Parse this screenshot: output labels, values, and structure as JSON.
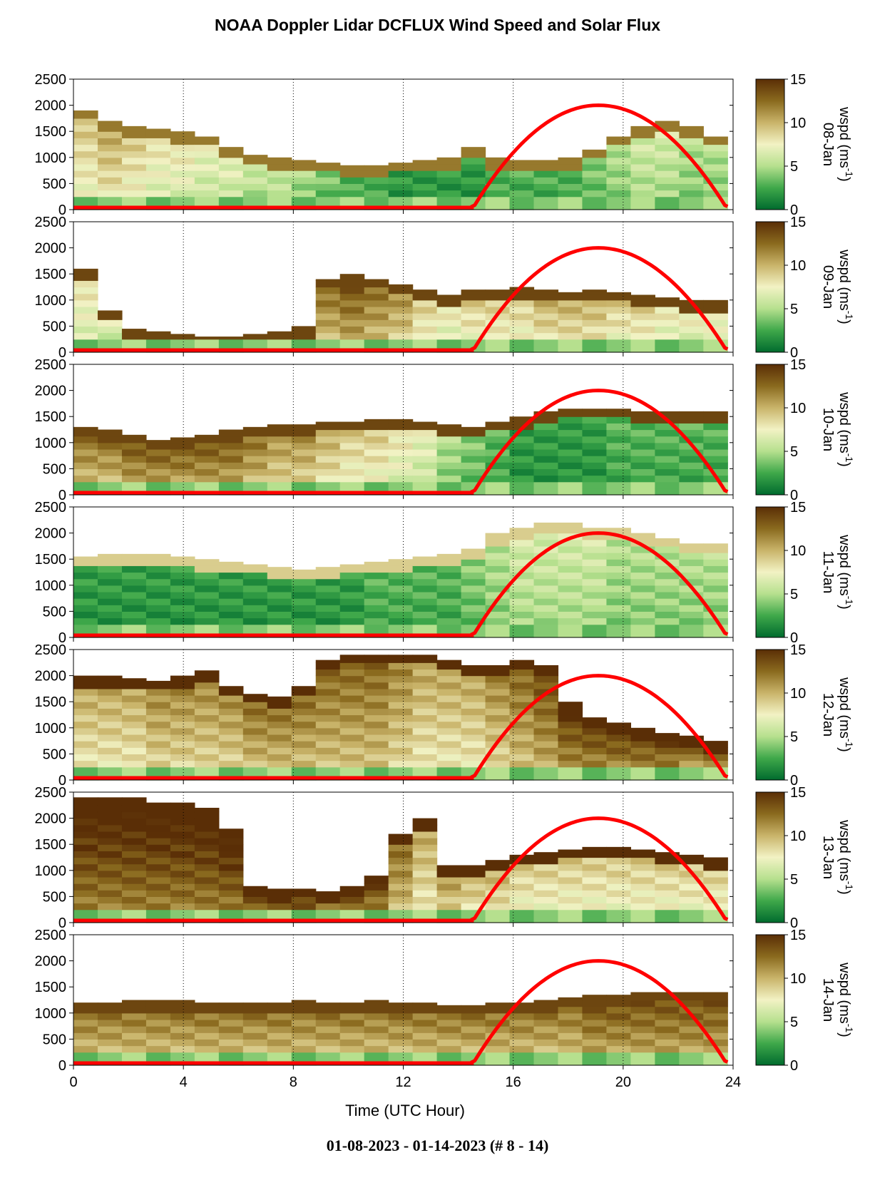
{
  "title": "NOAA Doppler Lidar DCFLUX Wind Speed and Solar Flux",
  "footer": "01-08-2023 - 01-14-2023   (# 8 - 14)",
  "colors": {
    "solar_curve": "#ff0000",
    "colormap": [
      "#006b2e",
      "#3fa84a",
      "#b6e08e",
      "#f2f2c4",
      "#c9b46a",
      "#8a6a1e",
      "#5a2e06"
    ]
  },
  "chart_data": {
    "type": "heatmap",
    "xlabel": "Time (UTC Hour)",
    "xlim": [
      0,
      24
    ],
    "xticks": [
      "0",
      "4",
      "8",
      "12",
      "16",
      "20",
      "24"
    ],
    "ylim": [
      0,
      2500
    ],
    "yticks": [
      "0",
      "500",
      "1000",
      "1500",
      "2000",
      "2500"
    ],
    "colorbar": {
      "label": "wspd (ms-1)",
      "range": [
        0,
        15
      ],
      "ticks": [
        "0",
        "5",
        "10",
        "15"
      ]
    },
    "vertical_gridlines": [
      4,
      8,
      12,
      16,
      20,
      24
    ],
    "panels": [
      {
        "date": "08-Jan",
        "top": [
          1900,
          1700,
          1600,
          1550,
          1500,
          1400,
          1200,
          1050,
          1000,
          950,
          900,
          850,
          850,
          900,
          950,
          1000,
          1200,
          1000,
          950,
          950,
          1000,
          1150,
          1400,
          1600,
          1700,
          1600,
          1400
        ],
        "speed": [
          9,
          10,
          9,
          8,
          8,
          7,
          7,
          6,
          6,
          5,
          4,
          3,
          3,
          2,
          2,
          2,
          2,
          3,
          3,
          3,
          3,
          4,
          5,
          6,
          6,
          5,
          5
        ],
        "top_speed": 12
      },
      {
        "date": "09-Jan",
        "top": [
          1600,
          800,
          450,
          400,
          350,
          300,
          300,
          350,
          400,
          500,
          1400,
          1500,
          1400,
          1300,
          1200,
          1100,
          1200,
          1200,
          1250,
          1200,
          1150,
          1200,
          1150,
          1100,
          1050,
          1000,
          1000
        ],
        "speed": [
          8,
          7,
          6,
          5,
          5,
          4,
          4,
          4,
          5,
          6,
          12,
          13,
          12,
          11,
          9,
          8,
          9,
          9,
          9,
          10,
          10,
          10,
          9,
          9,
          8,
          8,
          8
        ],
        "top_speed": 14
      },
      {
        "date": "10-Jan",
        "top": [
          1300,
          1250,
          1150,
          1050,
          1100,
          1150,
          1250,
          1300,
          1350,
          1350,
          1400,
          1400,
          1450,
          1450,
          1400,
          1350,
          1300,
          1400,
          1500,
          1600,
          1650,
          1650,
          1650,
          1600,
          1600,
          1600,
          1600
        ],
        "speed": [
          12,
          12,
          13,
          13,
          13,
          13,
          13,
          12,
          11,
          11,
          10,
          9,
          9,
          8,
          7,
          5,
          4,
          3,
          2,
          2,
          2,
          2,
          3,
          3,
          3,
          3,
          3
        ],
        "top_speed": 14
      },
      {
        "date": "11-Jan",
        "top": [
          1550,
          1600,
          1600,
          1600,
          1550,
          1500,
          1450,
          1400,
          1350,
          1300,
          1350,
          1400,
          1450,
          1500,
          1550,
          1600,
          1700,
          2000,
          2100,
          2200,
          2200,
          2100,
          2100,
          2000,
          1900,
          1800,
          1800
        ],
        "speed": [
          2,
          2,
          2,
          2,
          2,
          2,
          2,
          2,
          2,
          2,
          2,
          2,
          3,
          3,
          3,
          3,
          4,
          5,
          6,
          6,
          6,
          6,
          5,
          5,
          5,
          5,
          5
        ],
        "top_speed": 9
      },
      {
        "date": "12-Jan",
        "top": [
          2000,
          2000,
          1950,
          1900,
          2000,
          2100,
          1800,
          1650,
          1600,
          1800,
          2300,
          2400,
          2400,
          2400,
          2400,
          2300,
          2200,
          2200,
          2300,
          2200,
          1500,
          1200,
          1100,
          1000,
          900,
          850,
          750
        ],
        "speed": [
          10,
          10,
          10,
          11,
          11,
          11,
          11,
          12,
          12,
          12,
          12,
          12,
          12,
          11,
          10,
          10,
          10,
          11,
          12,
          13,
          14,
          14,
          14,
          14,
          14,
          13,
          13
        ],
        "top_speed": 15
      },
      {
        "date": "13-Jan",
        "top": [
          2400,
          2400,
          2400,
          2300,
          2300,
          2200,
          1800,
          700,
          650,
          650,
          600,
          700,
          900,
          1700,
          2000,
          1100,
          1100,
          1200,
          1300,
          1350,
          1400,
          1450,
          1450,
          1400,
          1350,
          1300,
          1250
        ],
        "speed": [
          15,
          15,
          15,
          15,
          15,
          15,
          15,
          15,
          15,
          15,
          14,
          14,
          14,
          12,
          10,
          11,
          10,
          10,
          9,
          9,
          9,
          9,
          9,
          9,
          9,
          9,
          9
        ],
        "top_speed": 15
      },
      {
        "date": "14-Jan",
        "top": [
          1200,
          1200,
          1250,
          1250,
          1250,
          1200,
          1200,
          1200,
          1200,
          1250,
          1200,
          1200,
          1250,
          1200,
          1200,
          1150,
          1150,
          1200,
          1200,
          1250,
          1300,
          1350,
          1350,
          1400,
          1400,
          1400,
          1400
        ],
        "speed": [
          12,
          12,
          12,
          12,
          12,
          12,
          12,
          12,
          12,
          12,
          12,
          12,
          12,
          12,
          12,
          12,
          12,
          12,
          12,
          12,
          12,
          13,
          13,
          13,
          13,
          13,
          13
        ],
        "top_speed": 14
      }
    ],
    "solar_flux": {
      "sunrise": 14.5,
      "peak_hour": 19.1,
      "peak_value": 2000,
      "sunset": 23.8
    }
  }
}
